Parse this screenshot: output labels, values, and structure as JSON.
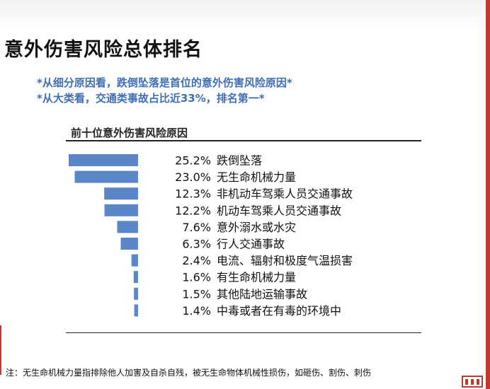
{
  "slide": {
    "title": "意外伤害风险总体排名",
    "bullets": [
      "*从细分原因看，跌倒坠落是首位的意外伤害风险原因*",
      "*从大类看，交通类事故占比近33%，排名第一*"
    ],
    "footnote": "注：无生命机械力量指排除他人加害及自杀自残，被无生命物体机械性损伤，如砸伤、割伤、刺伤"
  },
  "colors": {
    "bar": "#5b86c8",
    "bullet_text": "#3f6fb5",
    "accent": "#c0392b"
  },
  "chart_data": {
    "type": "bar",
    "orientation": "horizontal",
    "title": "前十位意外伤害风险原因",
    "categories": [
      "跌倒坠落",
      "无生命机械力量",
      "非机动车驾乘人员交通事故",
      "机动车驾乘人员交通事故",
      "意外溺水或水灾",
      "行人交通事故",
      "电流、辐射和极度气温损害",
      "有生命机械力量",
      "其他陆地运输事故",
      "中毒或者在有毒的环境中"
    ],
    "values": [
      25.2,
      23.0,
      12.3,
      12.2,
      7.6,
      6.3,
      2.4,
      1.6,
      1.5,
      1.4
    ],
    "value_labels": [
      "25.2%",
      "23.0%",
      "12.3%",
      "12.2%",
      "7.6%",
      "6.3%",
      "2.4%",
      "1.6%",
      "1.5%",
      "1.4%"
    ],
    "bar_alignment": "right",
    "grid": false,
    "legend": "none"
  }
}
